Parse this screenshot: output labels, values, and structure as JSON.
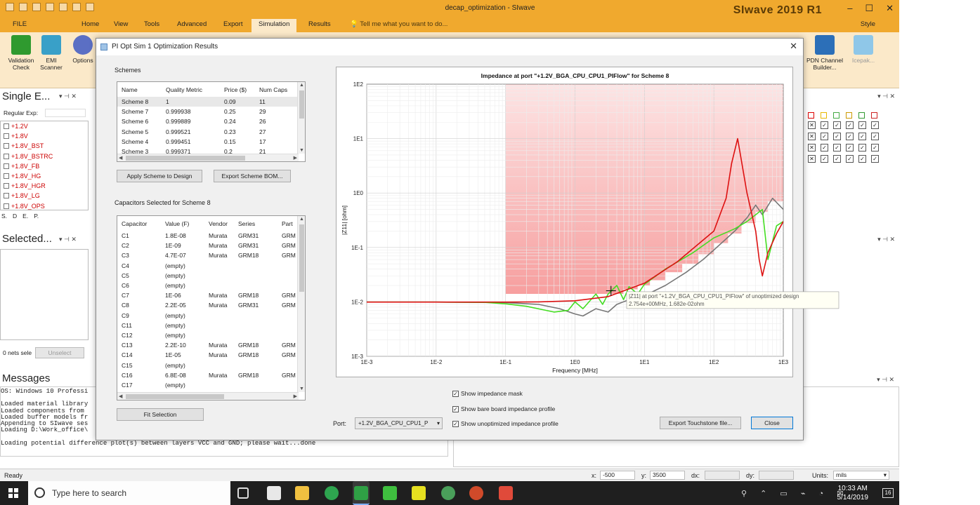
{
  "window": {
    "title": "decap_optimization - SIwave",
    "product": "SIwave 2019 R1",
    "quick_access_icons": [
      "sun-icon",
      "new-icon",
      "open-icon",
      "save-icon",
      "close-icon",
      "undo-icon",
      "redo-icon"
    ]
  },
  "ribbon": {
    "tabs": [
      "FILE",
      "Home",
      "View",
      "Tools",
      "Advanced",
      "Export",
      "Simulation",
      "Results"
    ],
    "active_tab": "Simulation",
    "tell_me": "Tell me what you want to do...",
    "style_label": "Style",
    "buttons": [
      {
        "label": "Validation\nCheck",
        "icon": "validation-check-icon"
      },
      {
        "label": "EMI\nScanner",
        "icon": "emi-scanner-icon"
      },
      {
        "label": "Options",
        "icon": "options-icon"
      }
    ],
    "right_buttons": [
      {
        "label": "PDN Channel\nBuilder...",
        "icon": "pdn-channel-icon"
      },
      {
        "label": "Icepak...",
        "icon": "icepak-icon"
      }
    ]
  },
  "left_panel": {
    "single_title": "Single E...",
    "regexp_label": "Regular Exp:",
    "nets": [
      "+1.2V",
      "+1.8V",
      "+1.8V_BST",
      "+1.8V_BSTRC",
      "+1.8V_FB",
      "+1.8V_HG",
      "+1.8V_HGR",
      "+1.8V_LG",
      "+1.8V_OPS"
    ],
    "tabs": [
      "S.",
      "D",
      "E.",
      "P."
    ],
    "selected_title": "Selected...",
    "nets_selected": "0 nets sele",
    "unselect": "Unselect"
  },
  "messages": {
    "title": "Messages",
    "lines": [
      "OS: Windows 10 Professi",
      "",
      "Loaded material library",
      "Loaded components from",
      "Loaded buffer models fr",
      "Appending to SIwave ses",
      "Loading D:\\Work_office\\",
      "",
      "Loading potential difference plot(s) between layers VCC and GND; please wait...done"
    ]
  },
  "dialog": {
    "title": "PI Opt Sim 1 Optimization Results",
    "schemes_label": "Schemes",
    "schemes_columns": [
      "Name",
      "Quality Metric",
      "Price ($)",
      "Num Caps"
    ],
    "schemes": [
      [
        "Scheme 8",
        "1",
        "0.09",
        "11"
      ],
      [
        "Scheme 7",
        "0.999938",
        "0.25",
        "29"
      ],
      [
        "Scheme 6",
        "0.999889",
        "0.24",
        "26"
      ],
      [
        "Scheme 5",
        "0.999521",
        "0.23",
        "27"
      ],
      [
        "Scheme 4",
        "0.999451",
        "0.15",
        "17"
      ],
      [
        "Scheme 3",
        "0.999371",
        "0.2",
        "21"
      ]
    ],
    "apply_btn": "Apply Scheme to Design",
    "export_bom_btn": "Export Scheme BOM...",
    "caps_label": "Capacitors Selected for Scheme 8",
    "caps_columns": [
      "Capacitor",
      "Value (F)",
      "Vendor",
      "Series",
      "Part"
    ],
    "caps": [
      [
        "C1",
        "1.8E-08",
        "Murata",
        "GRM31",
        "GRM"
      ],
      [
        "C2",
        "1E-09",
        "Murata",
        "GRM31",
        "GRM"
      ],
      [
        "C3",
        "4.7E-07",
        "Murata",
        "GRM18",
        "GRM"
      ],
      [
        "C4",
        "(empty)",
        "",
        "",
        ""
      ],
      [
        "C5",
        "(empty)",
        "",
        "",
        ""
      ],
      [
        "C6",
        "(empty)",
        "",
        "",
        ""
      ],
      [
        "C7",
        "1E-06",
        "Murata",
        "GRM18",
        "GRM"
      ],
      [
        "C8",
        "2.2E-05",
        "Murata",
        "GRM31",
        "GRM"
      ],
      [
        "C9",
        "(empty)",
        "",
        "",
        ""
      ],
      [
        "C11",
        "(empty)",
        "",
        "",
        ""
      ],
      [
        "C12",
        "(empty)",
        "",
        "",
        ""
      ],
      [
        "C13",
        "2.2E-10",
        "Murata",
        "GRM18",
        "GRM"
      ],
      [
        "C14",
        "1E-05",
        "Murata",
        "GRM18",
        "GRM"
      ],
      [
        "C15",
        "(empty)",
        "",
        "",
        ""
      ],
      [
        "C16",
        "6.8E-08",
        "Murata",
        "GRM18",
        "GRM"
      ],
      [
        "C17",
        "(empty)",
        "",
        "",
        ""
      ]
    ],
    "fit_btn": "Fit Selection",
    "port_label": "Port:",
    "port_value": "+1.2V_BGA_CPU_CPU1_P",
    "checkboxes": [
      "Show impedance mask",
      "Show bare board impedance profile",
      "Show unoptimized impedance profile"
    ],
    "export_touchstone_btn": "Export Touchstone file...",
    "close_btn": "Close"
  },
  "chart_data": {
    "type": "line",
    "title": "Impedance at port \"+1.2V_BGA_CPU_CPU1_PIFlow\" for Scheme 8",
    "xlabel": "Frequency [MHz]",
    "ylabel": "|Z11| [ohm]",
    "xscale": "log",
    "yscale": "log",
    "xlim": [
      0.001,
      1000
    ],
    "ylim": [
      0.001,
      100
    ],
    "x_ticks": [
      "1E-3",
      "1E-2",
      "1E-1",
      "1E0",
      "1E1",
      "1E2",
      "1E3"
    ],
    "y_ticks": [
      "1E-3",
      "1E-2",
      "1E-1",
      "1E0",
      "1E1",
      "1E2"
    ],
    "grid": true,
    "series": [
      {
        "color": "#dd1111",
        "x": [
          0.001,
          0.01,
          0.1,
          0.3,
          1,
          3,
          10,
          30,
          100,
          150,
          180,
          220,
          300,
          400,
          450,
          500,
          600,
          800,
          1000
        ],
        "y": [
          0.0099,
          0.0099,
          0.0099,
          0.01,
          0.0105,
          0.0125,
          0.022,
          0.055,
          0.2,
          0.8,
          3.5,
          10,
          1,
          0.2,
          0.06,
          0.03,
          0.08,
          0.18,
          0.3
        ]
      },
      {
        "color": "#44dd22",
        "x": [
          0.001,
          0.01,
          0.05,
          0.1,
          0.2,
          0.5,
          0.8,
          1,
          1.3,
          2,
          2.5,
          3,
          4,
          5,
          6,
          8,
          10,
          20,
          50,
          100,
          200,
          300,
          400,
          500,
          600,
          800,
          1000
        ],
        "y": [
          0.0099,
          0.0099,
          0.0098,
          0.0092,
          0.0083,
          0.0065,
          0.007,
          0.01,
          0.0075,
          0.014,
          0.009,
          0.014,
          0.02,
          0.011,
          0.019,
          0.014,
          0.021,
          0.04,
          0.08,
          0.15,
          0.22,
          0.3,
          0.4,
          0.5,
          0.06,
          0.25,
          0.3
        ]
      },
      {
        "color": "#777777",
        "x": [
          0.001,
          0.01,
          0.1,
          0.3,
          0.6,
          1,
          1.3,
          2,
          3,
          4,
          6,
          8,
          10,
          20,
          40,
          70,
          100,
          200,
          300,
          400,
          500,
          700,
          1000
        ],
        "y": [
          0.0099,
          0.0099,
          0.0097,
          0.009,
          0.0075,
          0.006,
          0.0055,
          0.0075,
          0.0065,
          0.009,
          0.011,
          0.014,
          0.013,
          0.02,
          0.035,
          0.06,
          0.09,
          0.2,
          0.35,
          0.6,
          0.4,
          0.8,
          0.5
        ]
      }
    ],
    "mask_color": "#f05050",
    "tooltip": {
      "line1": "|Z11| at port \"+1.2V_BGA_CPU_CPU1_PIFlow\" of unoptimized design",
      "line2": "2.754e+00MHz, 1.682e-02ohm"
    }
  },
  "right_panel": {
    "check_rows": 4
  },
  "statusbar": {
    "ready": "Ready",
    "x_label": "x:",
    "x_value": "-500",
    "y_label": "y:",
    "y_value": "3500",
    "dx_label": "dx:",
    "dy_label": "dy:",
    "units_label": "Units:",
    "units_value": "mils"
  },
  "taskbar": {
    "search_placeholder": "Type here to search",
    "time": "10:33 AM",
    "date": "5/14/2019",
    "notifications": "16"
  }
}
